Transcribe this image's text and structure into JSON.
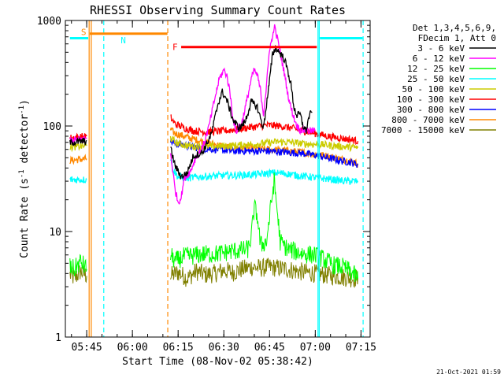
{
  "chart_data": {
    "type": "line",
    "title": "RHESSI Observing Summary Count Rates",
    "xlabel": "Start Time (08-Nov-02 05:38:42)",
    "ylabel_main": "Count Rate (s",
    "ylabel_sup1": "-1",
    "ylabel_mid": " detector",
    "ylabel_sup2": "-1",
    "ylabel_end": ")",
    "y_scale": "log",
    "ylim": [
      1,
      1000
    ],
    "xlim": [
      "05:38",
      "07:18"
    ],
    "y_ticks": [
      {
        "value": 1,
        "label": "1"
      },
      {
        "value": 10,
        "label": "10"
      },
      {
        "value": 100,
        "label": "100"
      },
      {
        "value": 1000,
        "label": "1000"
      }
    ],
    "x_ticks": [
      {
        "value": 345,
        "label": "05:45"
      },
      {
        "value": 360,
        "label": "06:00"
      },
      {
        "value": 375,
        "label": "06:15"
      },
      {
        "value": 390,
        "label": "06:30"
      },
      {
        "value": 405,
        "label": "06:45"
      },
      {
        "value": 420,
        "label": "07:00"
      },
      {
        "value": 435,
        "label": "07:15"
      }
    ],
    "legend_header": [
      "Det 1,3,4,5,6,9,",
      "FDecim 1, Att 0"
    ],
    "legend_placement": "right",
    "timestamp": "21-Oct-2021 01:59",
    "series": [
      {
        "name": "3 - 6 keV",
        "color": "#000000",
        "segments": [
          [
            [
              339.5,
              70
            ],
            [
              345,
              72
            ]
          ],
          [
            [
              372.5,
              62
            ],
            [
              374,
              42
            ],
            [
              376,
              33
            ],
            [
              378,
              36
            ],
            [
              380,
              52
            ],
            [
              383,
              56
            ],
            [
              386,
              85
            ],
            [
              388,
              160
            ],
            [
              389.5,
              210
            ],
            [
              391,
              175
            ],
            [
              393,
              115
            ],
            [
              395,
              95
            ],
            [
              397,
              110
            ],
            [
              399,
              170
            ],
            [
              401,
              150
            ],
            [
              403,
              95
            ],
            [
              405,
              270
            ],
            [
              406,
              480
            ],
            [
              407,
              550
            ],
            [
              408,
              510
            ],
            [
              409,
              470
            ],
            [
              410,
              420
            ],
            [
              411,
              330
            ],
            [
              412,
              250
            ],
            [
              413,
              150
            ],
            [
              414,
              125
            ],
            [
              415,
              130
            ],
            [
              416,
              100
            ],
            [
              417,
              90
            ],
            [
              418,
              125
            ],
            [
              419,
              135
            ]
          ]
        ]
      },
      {
        "name": "6 - 12 keV",
        "color": "#ff00ff",
        "segments": [
          [
            [
              339.5,
              73
            ],
            [
              345,
              76
            ]
          ],
          [
            [
              372.5,
              56
            ],
            [
              374,
              25
            ],
            [
              375,
              19
            ],
            [
              376,
              21
            ],
            [
              377,
              32
            ],
            [
              379,
              37
            ],
            [
              381,
              52
            ],
            [
              383,
              62
            ],
            [
              385,
              96
            ],
            [
              387,
              180
            ],
            [
              388.5,
              280
            ],
            [
              390,
              340
            ],
            [
              391,
              300
            ],
            [
              392,
              210
            ],
            [
              393,
              120
            ],
            [
              394,
              88
            ],
            [
              396,
              110
            ],
            [
              398,
              200
            ],
            [
              399,
              280
            ],
            [
              400,
              340
            ],
            [
              401,
              300
            ],
            [
              402,
              220
            ],
            [
              403,
              130
            ],
            [
              404,
              240
            ],
            [
              405,
              550
            ],
            [
              406,
              680
            ],
            [
              406.5,
              900
            ],
            [
              407,
              780
            ],
            [
              408,
              600
            ],
            [
              409,
              420
            ],
            [
              410,
              300
            ],
            [
              411,
              200
            ],
            [
              412,
              150
            ],
            [
              413,
              120
            ],
            [
              414,
              100
            ],
            [
              415,
              92
            ],
            [
              416,
              92
            ],
            [
              418,
              90
            ],
            [
              420,
              90
            ]
          ]
        ]
      },
      {
        "name": "12 - 25 keV",
        "color": "#00ff00",
        "segments": [
          [
            [
              339.5,
              4.6
            ],
            [
              341,
              4.4
            ],
            [
              343,
              5.2
            ],
            [
              345,
              4.4
            ]
          ],
          [
            [
              372.5,
              6
            ],
            [
              374,
              5.2
            ],
            [
              377,
              5.8
            ],
            [
              380,
              5.9
            ],
            [
              383,
              6.1
            ],
            [
              386,
              6.1
            ],
            [
              389,
              6.2
            ],
            [
              392,
              6.5
            ],
            [
              395,
              6.6
            ],
            [
              398,
              6.8
            ],
            [
              399,
              9
            ],
            [
              400,
              17
            ],
            [
              401,
              14
            ],
            [
              402,
              7.4
            ],
            [
              404,
              8
            ],
            [
              405.5,
              18
            ],
            [
              406.5,
              30
            ],
            [
              407.5,
              16
            ],
            [
              408.5,
              8
            ],
            [
              411,
              6.8
            ],
            [
              414,
              6.4
            ],
            [
              417,
              6.1
            ],
            [
              420,
              6
            ],
            [
              423,
              5.4
            ],
            [
              426,
              4.8
            ],
            [
              429,
              4.6
            ],
            [
              432,
              4.1
            ],
            [
              434,
              3.6
            ]
          ]
        ]
      },
      {
        "name": "25 - 50 keV",
        "color": "#00ffff",
        "segments": [
          [
            [
              339.5,
              31
            ],
            [
              345,
              31
            ]
          ],
          [
            [
              372.5,
              50
            ],
            [
              373.5,
              38
            ],
            [
              375,
              33
            ],
            [
              378,
              32
            ],
            [
              382,
              33
            ],
            [
              386,
              33.5
            ],
            [
              390,
              34
            ],
            [
              394,
              34
            ],
            [
              398,
              34.5
            ],
            [
              402,
              35
            ],
            [
              406,
              36
            ],
            [
              410,
              35.5
            ],
            [
              414,
              34
            ],
            [
              418,
              33
            ],
            [
              422,
              32
            ],
            [
              426,
              31
            ],
            [
              430,
              30
            ],
            [
              434,
              30
            ]
          ]
        ]
      },
      {
        "name": "50 - 100 keV",
        "color": "#cccc00",
        "segments": [
          [
            [
              339.5,
              63
            ],
            [
              345,
              65
            ]
          ],
          [
            [
              372.5,
              78
            ],
            [
              374,
              70
            ],
            [
              377,
              66
            ],
            [
              380,
              64
            ],
            [
              384,
              64
            ],
            [
              388,
              64
            ],
            [
              392,
              65
            ],
            [
              396,
              66
            ],
            [
              400,
              67
            ],
            [
              404,
              69
            ],
            [
              408,
              71
            ],
            [
              412,
              70
            ],
            [
              416,
              68
            ],
            [
              420,
              67
            ],
            [
              424,
              66
            ],
            [
              428,
              64
            ],
            [
              432,
              63
            ],
            [
              434,
              62
            ]
          ]
        ]
      },
      {
        "name": "100 - 300 keV",
        "color": "#ff0000",
        "segments": [
          [
            [
              339.5,
              77
            ],
            [
              345,
              80
            ]
          ],
          [
            [
              372.5,
              120
            ],
            [
              374,
              105
            ],
            [
              377,
              96
            ],
            [
              380,
              90
            ],
            [
              384,
              88
            ],
            [
              388,
              89
            ],
            [
              392,
              91
            ],
            [
              396,
              95
            ],
            [
              400,
              98
            ],
            [
              404,
              102
            ],
            [
              408,
              100
            ],
            [
              412,
              96
            ],
            [
              416,
              90
            ],
            [
              420,
              85
            ],
            [
              424,
              80
            ],
            [
              428,
              77
            ],
            [
              432,
              74
            ],
            [
              434,
              72
            ]
          ]
        ]
      },
      {
        "name": "300 - 800 keV",
        "color": "#0000ff",
        "segments": [
          [
            [
              372.5,
              72
            ],
            [
              374,
              68
            ],
            [
              377,
              66
            ],
            [
              380,
              63
            ],
            [
              384,
              61
            ],
            [
              388,
              60
            ],
            [
              392,
              58
            ],
            [
              396,
              58
            ],
            [
              400,
              58
            ],
            [
              404,
              58
            ],
            [
              408,
              57
            ],
            [
              412,
              56
            ],
            [
              416,
              55
            ],
            [
              420,
              53
            ],
            [
              424,
              50
            ],
            [
              428,
              47
            ],
            [
              432,
              45
            ],
            [
              434,
              43
            ]
          ]
        ]
      },
      {
        "name": "800 - 7000 keV",
        "color": "#ff8800",
        "segments": [
          [
            [
              339.5,
              47
            ],
            [
              345,
              49
            ]
          ],
          [
            [
              372.5,
              92
            ],
            [
              374,
              85
            ],
            [
              377,
              80
            ],
            [
              380,
              75
            ],
            [
              384,
              70
            ],
            [
              388,
              66
            ],
            [
              392,
              63
            ],
            [
              396,
              62
            ],
            [
              400,
              61
            ],
            [
              404,
              60
            ],
            [
              408,
              59
            ],
            [
              412,
              58
            ],
            [
              416,
              56
            ],
            [
              420,
              54
            ],
            [
              424,
              52
            ],
            [
              428,
              49
            ],
            [
              432,
              46
            ],
            [
              434,
              44
            ]
          ]
        ]
      },
      {
        "name": "7000 - 15000 keV",
        "color": "#808000",
        "segments": [
          [
            [
              339.5,
              3.9
            ],
            [
              341,
              3.6
            ],
            [
              343,
              4.2
            ],
            [
              345,
              3.8
            ]
          ],
          [
            [
              372.5,
              3.8
            ],
            [
              375,
              4.1
            ],
            [
              378,
              3.6
            ],
            [
              381,
              4.2
            ],
            [
              384,
              3.9
            ],
            [
              387,
              4
            ],
            [
              390,
              4.3
            ],
            [
              393,
              4.1
            ],
            [
              396,
              4.4
            ],
            [
              399,
              4.6
            ],
            [
              402,
              4.5
            ],
            [
              405,
              4.6
            ],
            [
              408,
              4.5
            ],
            [
              411,
              4.4
            ],
            [
              414,
              4.2
            ],
            [
              417,
              4.1
            ],
            [
              420,
              4
            ],
            [
              423,
              3.9
            ],
            [
              426,
              3.8
            ],
            [
              429,
              3.7
            ],
            [
              432,
              3.6
            ],
            [
              434,
              3.6
            ]
          ]
        ]
      }
    ],
    "flag_bars": [
      {
        "label": "S",
        "color": "#ff8800",
        "x_start": 346,
        "x_end": 371.5,
        "y": 750
      },
      {
        "label": "N",
        "color": "#00ffff",
        "x_start": 339.5,
        "x_end": 345.5,
        "y": 680
      },
      {
        "label": "N",
        "color": "#00ffff",
        "x_start": 421.5,
        "x_end": 435.5,
        "y": 680
      },
      {
        "label": "F",
        "color": "#ff0000",
        "x_start": 376,
        "x_end": 420.5,
        "y": 560
      }
    ],
    "flag_labels": [
      {
        "text": "S",
        "color": "#ff8800",
        "x": 344,
        "y": 780
      },
      {
        "text": "N",
        "color": "#00ffff",
        "x": 357,
        "y": 650
      },
      {
        "text": "F",
        "color": "#ff0000",
        "x": 374,
        "y": 560
      }
    ],
    "vlines": [
      {
        "x": 345.8,
        "color": "#ff8800",
        "dash": false
      },
      {
        "x": 346.5,
        "color": "#ff8800",
        "dash": false
      },
      {
        "x": 350.6,
        "color": "#00ffff",
        "dash": true
      },
      {
        "x": 371.6,
        "color": "#ff8800",
        "dash": true
      },
      {
        "x": 420.9,
        "color": "#00ffff",
        "dash": false
      },
      {
        "x": 421.3,
        "color": "#00ffff",
        "dash": false
      },
      {
        "x": 435.7,
        "color": "#00ffff",
        "dash": true
      }
    ]
  }
}
